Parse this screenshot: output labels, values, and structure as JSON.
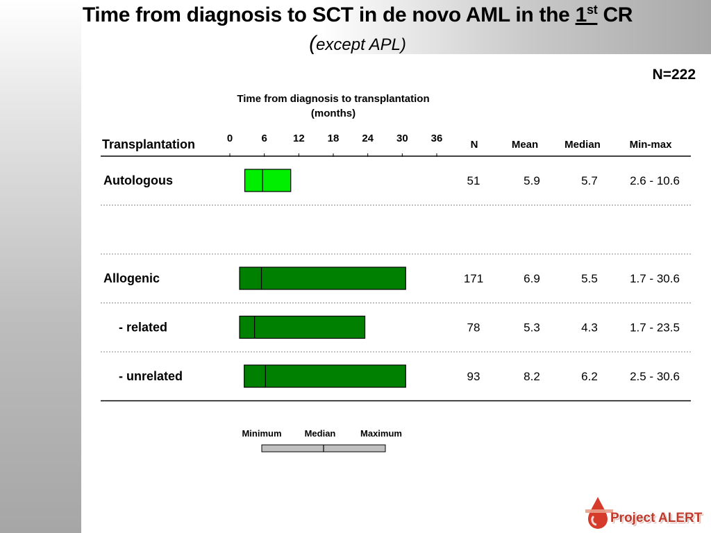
{
  "slide": {
    "title_main": "Time from diagnosis to SCT in de novo AML in the ",
    "title_ordinal": "1",
    "title_sup": "st",
    "title_tail": " CR",
    "subtitle_open": "(",
    "subtitle": "except APL)",
    "n_total": "N=222",
    "logo_text": "Project ALERT"
  },
  "chart_data": {
    "type": "table",
    "axis_title_line1": "Time from diagnosis to transplantation",
    "axis_title_line2": "(months)",
    "xlim": [
      0,
      36
    ],
    "x_ticks": [
      "0",
      "6",
      "12",
      "18",
      "24",
      "30",
      "36"
    ],
    "headers": {
      "group": "Transplantation",
      "n": "N",
      "mean": "Mean",
      "median": "Median",
      "minmax": "Min-max"
    },
    "rows": [
      {
        "label": "Autologous",
        "indent": false,
        "n": "51",
        "mean": "5.9",
        "median": "5.7",
        "minmax": "2.6 - 10.6",
        "min": 2.6,
        "med": 5.7,
        "max": 10.6,
        "color": "#00ee00"
      },
      {
        "label": "",
        "indent": false,
        "n": "",
        "mean": "",
        "median": "",
        "minmax": "",
        "min": null,
        "med": null,
        "max": null,
        "color": null
      },
      {
        "label": "Allogenic",
        "indent": false,
        "n": "171",
        "mean": "6.9",
        "median": "5.5",
        "minmax": "1.7 - 30.6",
        "min": 1.7,
        "med": 5.5,
        "max": 30.6,
        "color": "#008000"
      },
      {
        "label": "- related",
        "indent": true,
        "n": "78",
        "mean": "5.3",
        "median": "4.3",
        "minmax": "1.7 - 23.5",
        "min": 1.7,
        "med": 4.3,
        "max": 23.5,
        "color": "#008000"
      },
      {
        "label": "- unrelated",
        "indent": true,
        "n": "93",
        "mean": "8.2",
        "median": "6.2",
        "minmax": "2.5 - 30.6",
        "min": 2.5,
        "med": 6.2,
        "max": 30.6,
        "color": "#008000"
      }
    ],
    "legend": {
      "minimum": "Minimum",
      "median": "Median",
      "maximum": "Maximum",
      "color": "#c0c0c0"
    }
  }
}
